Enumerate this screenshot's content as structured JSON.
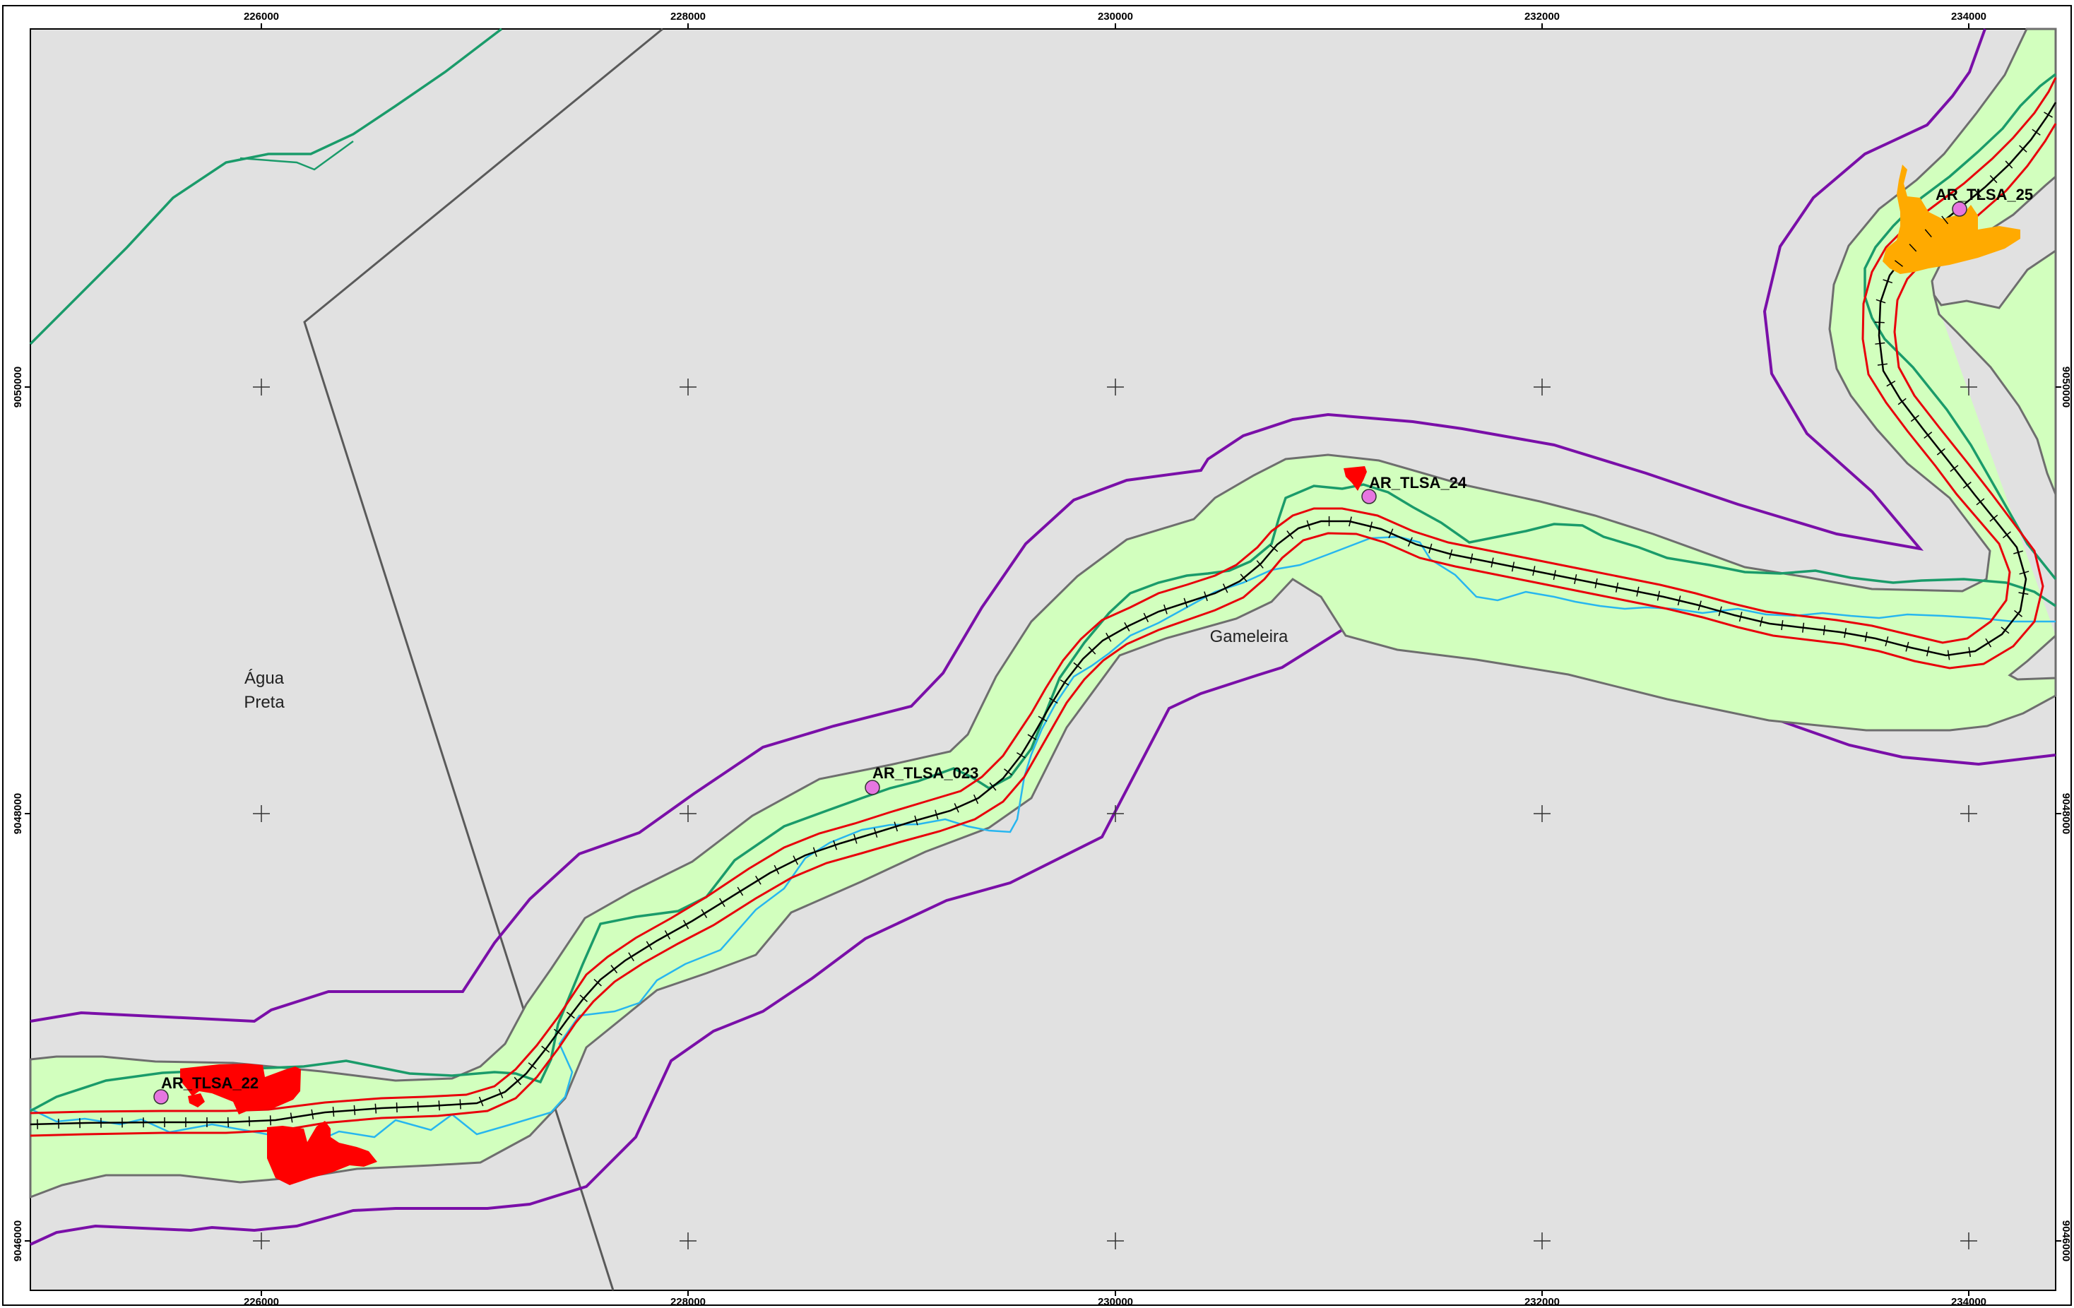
{
  "map": {
    "x_ticks": [
      "226000",
      "228000",
      "230000",
      "232000",
      "234000"
    ],
    "y_ticks": [
      "9050000",
      "9048000",
      "9046000"
    ],
    "places": {
      "agua": "Água",
      "preta": "Preta",
      "gameleira": "Gameleira"
    },
    "sites": [
      {
        "label": "AR_TLSA_22"
      },
      {
        "label": "AR_TLSA_023"
      },
      {
        "label": "AR_TLSA_24"
      },
      {
        "label": "AR_TLSA_25"
      }
    ],
    "colors": {
      "background": "#e1e1e1",
      "buffer_fill": "#d2ffbe",
      "buffer_outline": "#6e6e6e",
      "outer_buffer": "#7a0fa8",
      "corridor_edge": "#e8000b",
      "railway": "#000000",
      "stream": "#27b6ef",
      "road": "#1a9b6a",
      "boundary": "#5a5a5a",
      "site_marker": "#e676e0",
      "red_area": "#ff0000",
      "orange_area": "#ffaa00"
    }
  }
}
